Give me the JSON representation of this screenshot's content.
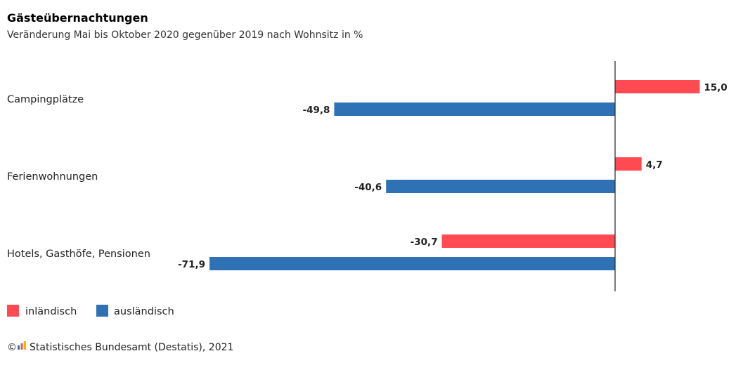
{
  "chart_data": {
    "type": "bar",
    "orientation": "horizontal",
    "title": "Gästeübernachtungen",
    "subtitle": "Veränderung Mai bis Oktober 2020 gegenüber 2019 nach Wohnsitz in %",
    "categories": [
      "Campingplätze",
      "Ferienwohnungen",
      "Hotels, Gasthöfe, Pensionen"
    ],
    "series": [
      {
        "name": "inländisch",
        "color": "#ff4a52",
        "values": [
          15.0,
          4.7,
          -30.7
        ],
        "labels": [
          "15,0",
          "4,7",
          "-30,7"
        ]
      },
      {
        "name": "ausländisch",
        "color": "#2f71b5",
        "values": [
          -49.8,
          -40.6,
          -71.9
        ],
        "labels": [
          "-49,8",
          "-40,6",
          "-71,9"
        ]
      }
    ],
    "xlim": [
      -72,
      20
    ],
    "grid": false,
    "legend_position": "bottom-left",
    "zero_line": true
  },
  "source": {
    "copyright_symbol": "©",
    "text": "Statistisches Bundesamt (Destatis), 2021",
    "logo_colors": [
      "#2f71b5",
      "#ff4a52",
      "#f7b500"
    ]
  }
}
